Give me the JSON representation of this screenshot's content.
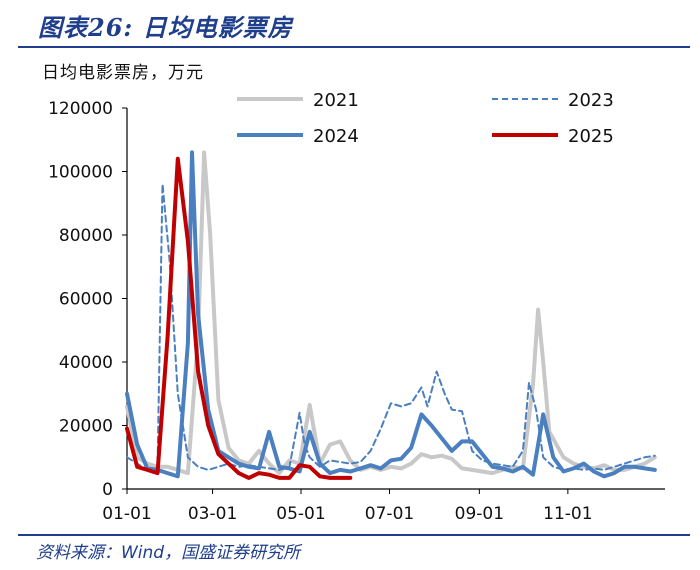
{
  "figure": {
    "title": "图表26:  日均电影票房",
    "unit_label": "日均电影票房，万元",
    "source": "资料来源：Wind，国盛证券研究所"
  },
  "chart_data": {
    "type": "line",
    "xlabel": "",
    "ylabel": "日均电影票房，万元",
    "ylim": [
      0,
      120000
    ],
    "yticks": [
      0,
      20000,
      40000,
      60000,
      80000,
      100000,
      120000
    ],
    "ytick_labels": [
      "0",
      "20000",
      "40000",
      "60000",
      "80000",
      "100000",
      "120000"
    ],
    "xlim": [
      0,
      53
    ],
    "xticks": [
      0,
      8.43,
      17.14,
      25.86,
      34.71,
      43.43
    ],
    "xtick_labels": [
      "01-01",
      "03-01",
      "05-01",
      "07-01",
      "09-01",
      "11-01"
    ],
    "grid": false,
    "legend_position": "top",
    "series": [
      {
        "name": "2021",
        "color": "#c8c8c8",
        "style": "solid",
        "width": 4,
        "points": [
          [
            0,
            26000
          ],
          [
            1,
            10000
          ],
          [
            2,
            8000
          ],
          [
            3,
            7000
          ],
          [
            4,
            7000
          ],
          [
            5,
            6000
          ],
          [
            6,
            5000
          ],
          [
            7,
            48000
          ],
          [
            7.6,
            106000
          ],
          [
            8.2,
            80000
          ],
          [
            9,
            28000
          ],
          [
            10,
            13000
          ],
          [
            11,
            9000
          ],
          [
            12,
            8000
          ],
          [
            13,
            12000
          ],
          [
            14,
            8000
          ],
          [
            15,
            5000
          ],
          [
            16,
            9000
          ],
          [
            17,
            8000
          ],
          [
            18,
            26500
          ],
          [
            19,
            8000
          ],
          [
            20,
            14000
          ],
          [
            21,
            15000
          ],
          [
            22,
            9000
          ],
          [
            23,
            6000
          ],
          [
            24,
            7000
          ],
          [
            25,
            6000
          ],
          [
            26,
            7000
          ],
          [
            27,
            6500
          ],
          [
            28,
            8000
          ],
          [
            29,
            11000
          ],
          [
            30,
            10000
          ],
          [
            31,
            10500
          ],
          [
            32,
            9500
          ],
          [
            33,
            6500
          ],
          [
            34,
            6000
          ],
          [
            35,
            5500
          ],
          [
            36,
            5000
          ],
          [
            37,
            6000
          ],
          [
            38,
            7000
          ],
          [
            39,
            6500
          ],
          [
            40,
            33000
          ],
          [
            40.5,
            56500
          ],
          [
            41,
            40000
          ],
          [
            41.6,
            18000
          ],
          [
            43,
            10000
          ],
          [
            44,
            8000
          ],
          [
            45,
            7000
          ],
          [
            46,
            6500
          ],
          [
            47,
            7500
          ],
          [
            48,
            6000
          ],
          [
            49,
            6000
          ],
          [
            50,
            7000
          ],
          [
            51,
            8000
          ],
          [
            52,
            10000
          ]
        ]
      },
      {
        "name": "2023",
        "color": "#4a7fc0",
        "style": "dashed",
        "width": 2,
        "points": [
          [
            0,
            10000
          ],
          [
            1,
            8000
          ],
          [
            2,
            6000
          ],
          [
            3,
            6500
          ],
          [
            3.5,
            96000
          ],
          [
            4.2,
            72000
          ],
          [
            5,
            30000
          ],
          [
            6,
            10000
          ],
          [
            7,
            7000
          ],
          [
            8,
            6000
          ],
          [
            9,
            7000
          ],
          [
            10,
            8000
          ],
          [
            11,
            7000
          ],
          [
            12,
            7500
          ],
          [
            13,
            7000
          ],
          [
            14,
            6500
          ],
          [
            15,
            6000
          ],
          [
            16,
            7000
          ],
          [
            17,
            24000
          ],
          [
            17.5,
            14000
          ],
          [
            18,
            10000
          ],
          [
            19,
            7000
          ],
          [
            20,
            9000
          ],
          [
            21,
            8500
          ],
          [
            22,
            8000
          ],
          [
            23,
            8500
          ],
          [
            24,
            12000
          ],
          [
            25,
            19000
          ],
          [
            26,
            27000
          ],
          [
            27,
            26000
          ],
          [
            28,
            27000
          ],
          [
            29,
            32000
          ],
          [
            29.6,
            26000
          ],
          [
            30.5,
            37000
          ],
          [
            31.3,
            30000
          ],
          [
            32,
            25000
          ],
          [
            33,
            24500
          ],
          [
            34,
            12000
          ],
          [
            35,
            9000
          ],
          [
            36,
            8000
          ],
          [
            37,
            7500
          ],
          [
            38,
            7000
          ],
          [
            39,
            12000
          ],
          [
            39.6,
            33500
          ],
          [
            40.3,
            25000
          ],
          [
            41,
            10000
          ],
          [
            42,
            7000
          ],
          [
            43,
            6000
          ],
          [
            44,
            6500
          ],
          [
            45,
            6000
          ],
          [
            46,
            6500
          ],
          [
            47,
            6000
          ],
          [
            48,
            7000
          ],
          [
            49,
            8000
          ],
          [
            50,
            9000
          ],
          [
            51,
            10000
          ],
          [
            52,
            10500
          ]
        ]
      },
      {
        "name": "2024",
        "color": "#4a7fc0",
        "style": "solid",
        "width": 4,
        "points": [
          [
            0,
            30000
          ],
          [
            1,
            14000
          ],
          [
            2,
            6500
          ],
          [
            3,
            6000
          ],
          [
            4,
            5000
          ],
          [
            5,
            4000
          ],
          [
            6,
            46000
          ],
          [
            6.4,
            106000
          ],
          [
            7,
            55000
          ],
          [
            8,
            25000
          ],
          [
            9,
            12000
          ],
          [
            10,
            10000
          ],
          [
            11,
            8000
          ],
          [
            12,
            7000
          ],
          [
            13,
            6500
          ],
          [
            14,
            18000
          ],
          [
            15,
            7000
          ],
          [
            16,
            6500
          ],
          [
            17,
            5500
          ],
          [
            18,
            18000
          ],
          [
            19,
            8000
          ],
          [
            20,
            5000
          ],
          [
            21,
            6000
          ],
          [
            22,
            5500
          ],
          [
            23,
            6500
          ],
          [
            24,
            7500
          ],
          [
            25,
            6500
          ],
          [
            26,
            9000
          ],
          [
            27,
            9500
          ],
          [
            28,
            13000
          ],
          [
            29,
            23500
          ],
          [
            30,
            20000
          ],
          [
            31,
            16000
          ],
          [
            32,
            12000
          ],
          [
            33,
            15000
          ],
          [
            34,
            15000
          ],
          [
            35,
            11000
          ],
          [
            36,
            7000
          ],
          [
            37,
            6500
          ],
          [
            38,
            5500
          ],
          [
            39,
            7000
          ],
          [
            40,
            4500
          ],
          [
            41,
            23500
          ],
          [
            42,
            10000
          ],
          [
            43,
            5500
          ],
          [
            44,
            6500
          ],
          [
            45,
            8000
          ],
          [
            46,
            5500
          ],
          [
            47,
            4000
          ],
          [
            48,
            5000
          ],
          [
            49,
            7000
          ],
          [
            50,
            7000
          ],
          [
            51,
            6500
          ],
          [
            52,
            6000
          ]
        ]
      },
      {
        "name": "2025",
        "color": "#c00000",
        "style": "solid",
        "width": 4,
        "points": [
          [
            0,
            19000
          ],
          [
            1,
            7000
          ],
          [
            2,
            6000
          ],
          [
            3,
            5000
          ],
          [
            4,
            48000
          ],
          [
            5,
            104000
          ],
          [
            6,
            78000
          ],
          [
            7,
            37000
          ],
          [
            8,
            20000
          ],
          [
            9,
            11000
          ],
          [
            10,
            8000
          ],
          [
            11,
            5000
          ],
          [
            12,
            3500
          ],
          [
            13,
            5000
          ],
          [
            14,
            4500
          ],
          [
            15,
            3500
          ],
          [
            16,
            3500
          ],
          [
            17,
            7500
          ],
          [
            18,
            7000
          ],
          [
            19,
            4000
          ],
          [
            20,
            3500
          ],
          [
            21,
            3500
          ],
          [
            22,
            3500
          ]
        ]
      }
    ]
  }
}
